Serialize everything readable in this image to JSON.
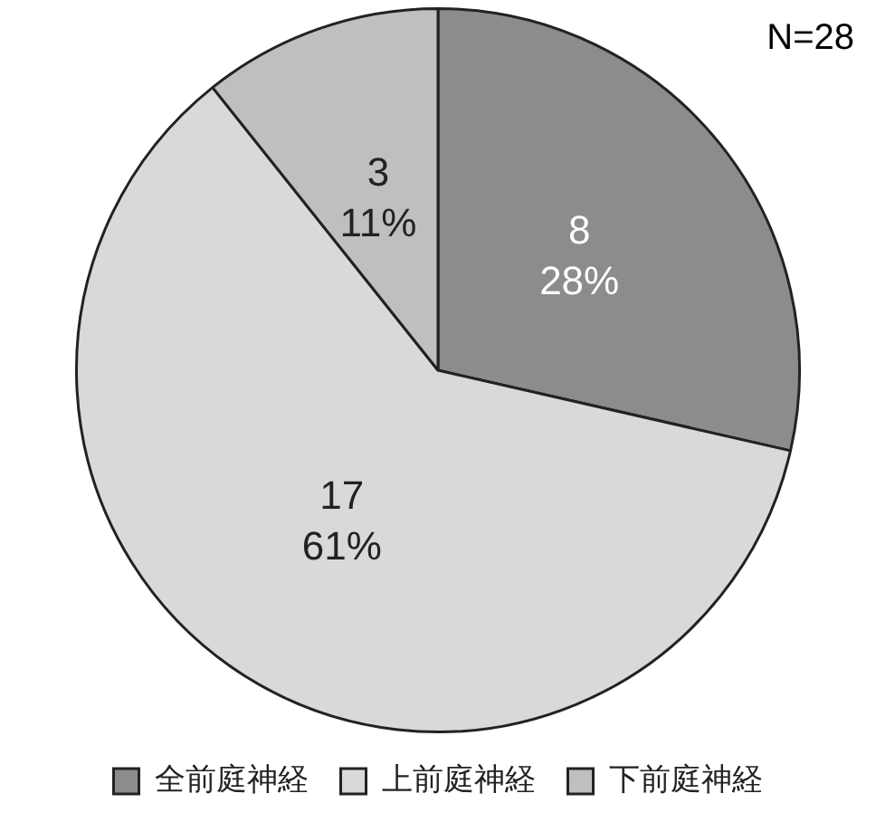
{
  "chart_data": {
    "type": "pie",
    "categories": [
      "全前庭神経",
      "上前庭神経",
      "下前庭神経"
    ],
    "values": [
      8,
      17,
      3
    ],
    "colors": [
      "#8c8c8c",
      "#d9d9d9",
      "#bfbfbf"
    ],
    "value_labels": [
      "8\n28%",
      "17\n61%",
      "3\n11%"
    ],
    "annotations": [
      "N=28"
    ],
    "legend": "bottom"
  }
}
